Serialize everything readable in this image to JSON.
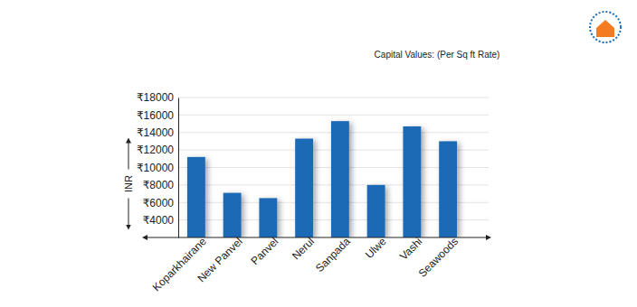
{
  "chart_data": {
    "type": "bar",
    "title": "Capital Values: (Per Sq ft Rate)",
    "y_label": "INR",
    "categories": [
      "Koparkhairane",
      "New Panvel",
      "Panvel",
      "Nerul",
      "Sanpada",
      "Ulwe",
      "Vashi",
      "Seawoods"
    ],
    "values": [
      11200,
      7100,
      6500,
      13300,
      15300,
      8000,
      14700,
      13000
    ],
    "color": "#1a6ab6",
    "ylim": [
      2000,
      18000
    ],
    "yticks": [
      {
        "value": 4000,
        "label": "₹4000"
      },
      {
        "value": 6000,
        "label": "₹6000"
      },
      {
        "value": 8000,
        "label": "₹8000"
      },
      {
        "value": 10000,
        "label": "₹10000"
      },
      {
        "value": 12000,
        "label": "₹12000"
      },
      {
        "value": 14000,
        "label": "₹14000"
      },
      {
        "value": 16000,
        "label": "₹16000"
      },
      {
        "value": 18000,
        "label": "₹18000"
      }
    ],
    "grid": true
  }
}
